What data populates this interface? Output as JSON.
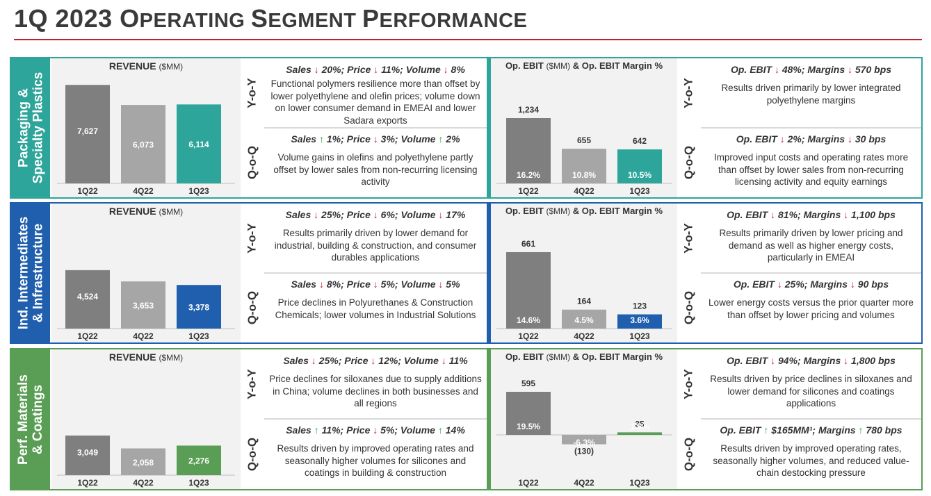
{
  "title": {
    "main": "1Q 2023 ",
    "word1_cap": "O",
    "word1_rest": "PERATING ",
    "word2_cap": "S",
    "word2_rest": "EGMENT ",
    "word3_cap": "P",
    "word3_rest": "ERFORMANCE"
  },
  "colors": {
    "rule": "#c0202f",
    "down_arrow": "#c0202f",
    "up_arrow": "#2e9c3a",
    "gray_dark": "#7f7f7f",
    "gray_light": "#a6a6a6"
  },
  "panel_titles": {
    "revenue": "REVENUE",
    "revenue_unit": "($MM)",
    "ebit_a": "Op. EBIT",
    "ebit_unit": "($MM)",
    "ebit_b": "& Op. EBIT Margin %"
  },
  "labels": {
    "yoy": "Y-o-Y",
    "qoq": "Q-o-Q"
  },
  "segments": [
    {
      "name_line1": "Packaging &",
      "name_line2": "Specialty Plastics",
      "color": "#2ea59a",
      "yoy": {
        "head": [
          "Sales ",
          "↓",
          " 20%; Price ",
          "↓",
          " 11%; Volume ",
          "↓",
          " 8%"
        ],
        "dirs": [
          "dn",
          "dn",
          "dn"
        ],
        "body": "Functional polymers resilience more than offset by lower polyethylene and olefin prices; volume down on lower consumer demand in EMEAI and lower Sadara exports"
      },
      "qoq": {
        "head": [
          "Sales ",
          "↑",
          " 1%; Price ",
          "↓",
          " 3%; Volume ",
          "↑",
          " 2%"
        ],
        "dirs": [
          "up",
          "dn",
          "up"
        ],
        "body": "Volume gains in olefins and polyethylene partly offset by lower sales from non-recurring licensing activity"
      },
      "ebit_yoy": {
        "head": [
          "Op. EBIT ",
          "↓",
          " 48%; Margins ",
          "↓",
          " 570 bps"
        ],
        "dirs": [
          "dn",
          "dn"
        ],
        "body": "Results driven primarily by lower integrated polyethylene margins"
      },
      "ebit_qoq": {
        "head": [
          "Op. EBIT ",
          "↓",
          " 2%; Margins ",
          "↓",
          " 30 bps"
        ],
        "dirs": [
          "dn",
          "dn"
        ],
        "body": "Improved input costs and operating rates more than offset by lower sales from non-recurring licensing activity and equity earnings"
      }
    },
    {
      "name_line1": "Ind. Intermediates",
      "name_line2": "& Infrastructure",
      "color": "#1f5fae",
      "yoy": {
        "head": [
          "Sales ",
          "↓",
          " 25%; Price ",
          "↓",
          " 6%; Volume ",
          "↓",
          " 17%"
        ],
        "dirs": [
          "dn",
          "dn",
          "dn"
        ],
        "body": "Results primarily driven by lower demand for industrial, building & construction, and consumer durables applications"
      },
      "qoq": {
        "head": [
          "Sales ",
          "↓",
          " 8%; Price ",
          "↓",
          " 5%; Volume ",
          "↓",
          " 5%"
        ],
        "dirs": [
          "dn",
          "dn",
          "dn"
        ],
        "body": "Price declines in Polyurethanes & Construction Chemicals; lower volumes in Industrial Solutions"
      },
      "ebit_yoy": {
        "head": [
          "Op. EBIT ",
          "↓",
          " 81%; Margins ",
          "↓",
          " 1,100 bps"
        ],
        "dirs": [
          "dn",
          "dn"
        ],
        "body": "Results primarily driven by lower pricing and demand as well as higher energy costs, particularly in EMEAI"
      },
      "ebit_qoq": {
        "head": [
          "Op. EBIT ",
          "↓",
          " 25%; Margins ",
          "↓",
          " 90 bps"
        ],
        "dirs": [
          "dn",
          "dn"
        ],
        "body": "Lower energy costs versus the prior quarter more than offset by lower pricing and volumes"
      }
    },
    {
      "name_line1": "Perf. Materials",
      "name_line2": "& Coatings",
      "color": "#5a9e55",
      "yoy": {
        "head": [
          "Sales ",
          "↓",
          " 25%; Price ",
          "↓",
          " 12%; Volume ",
          "↓",
          " 11%"
        ],
        "dirs": [
          "dn",
          "dn",
          "dn"
        ],
        "body": "Price declines for siloxanes due to supply additions in China; volume declines in both businesses and all regions"
      },
      "qoq": {
        "head": [
          "Sales ",
          "↑",
          " 11%; Price ",
          "↓",
          " 5%; Volume ",
          "↑",
          " 14%"
        ],
        "dirs": [
          "up",
          "dn",
          "up"
        ],
        "body": "Results driven by improved operating rates and seasonally higher volumes for silicones and coatings in building & construction"
      },
      "ebit_yoy": {
        "head": [
          "Op. EBIT ",
          "↓",
          " 94%; Margins ",
          "↓",
          " 1,800 bps"
        ],
        "dirs": [
          "dn",
          "dn"
        ],
        "body": "Results driven by price declines in siloxanes and lower demand for silicones and coatings applications"
      },
      "ebit_qoq": {
        "head": [
          "Op. EBIT ",
          "↑",
          " $165MM¹; Margins ",
          "↑",
          " 780 bps"
        ],
        "dirs": [
          "up",
          "up"
        ],
        "body": "Results driven by improved operating rates, seasonally higher volumes, and reduced value-chain destocking pressure"
      }
    }
  ],
  "chart_data": [
    {
      "type": "bar",
      "title": "REVENUE ($MM)",
      "segment": "Packaging & Specialty Plastics",
      "categories": [
        "1Q22",
        "4Q22",
        "1Q23"
      ],
      "values": [
        7627,
        6073,
        6114
      ],
      "value_labels": [
        "7,627",
        "6,073",
        "6,114"
      ]
    },
    {
      "type": "bar",
      "title": "Op. EBIT ($MM) & Op. EBIT Margin %",
      "segment": "Packaging & Specialty Plastics",
      "categories": [
        "1Q22",
        "4Q22",
        "1Q23"
      ],
      "values": [
        1234,
        655,
        642
      ],
      "value_labels": [
        "1,234",
        "655",
        "642"
      ],
      "margins": [
        "16.2%",
        "10.8%",
        "10.5%"
      ]
    },
    {
      "type": "bar",
      "title": "REVENUE ($MM)",
      "segment": "Ind. Intermediates & Infrastructure",
      "categories": [
        "1Q22",
        "4Q22",
        "1Q23"
      ],
      "values": [
        4524,
        3653,
        3378
      ],
      "value_labels": [
        "4,524",
        "3,653",
        "3,378"
      ]
    },
    {
      "type": "bar",
      "title": "Op. EBIT ($MM) & Op. EBIT Margin %",
      "segment": "Ind. Intermediates & Infrastructure",
      "categories": [
        "1Q22",
        "4Q22",
        "1Q23"
      ],
      "values": [
        661,
        164,
        123
      ],
      "value_labels": [
        "661",
        "164",
        "123"
      ],
      "margins": [
        "14.6%",
        "4.5%",
        "3.6%"
      ]
    },
    {
      "type": "bar",
      "title": "REVENUE ($MM)",
      "segment": "Perf. Materials & Coatings",
      "categories": [
        "1Q22",
        "4Q22",
        "1Q23"
      ],
      "values": [
        3049,
        2058,
        2276
      ],
      "value_labels": [
        "3,049",
        "2,058",
        "2,276"
      ]
    },
    {
      "type": "bar",
      "title": "Op. EBIT ($MM) & Op. EBIT Margin %",
      "segment": "Perf. Materials & Coatings",
      "categories": [
        "1Q22",
        "4Q22",
        "1Q23"
      ],
      "values": [
        595,
        -130,
        35
      ],
      "value_labels": [
        "595",
        "(130)",
        "35"
      ],
      "margins": [
        "19.5%",
        "-6.3%",
        "1.5%"
      ]
    }
  ]
}
